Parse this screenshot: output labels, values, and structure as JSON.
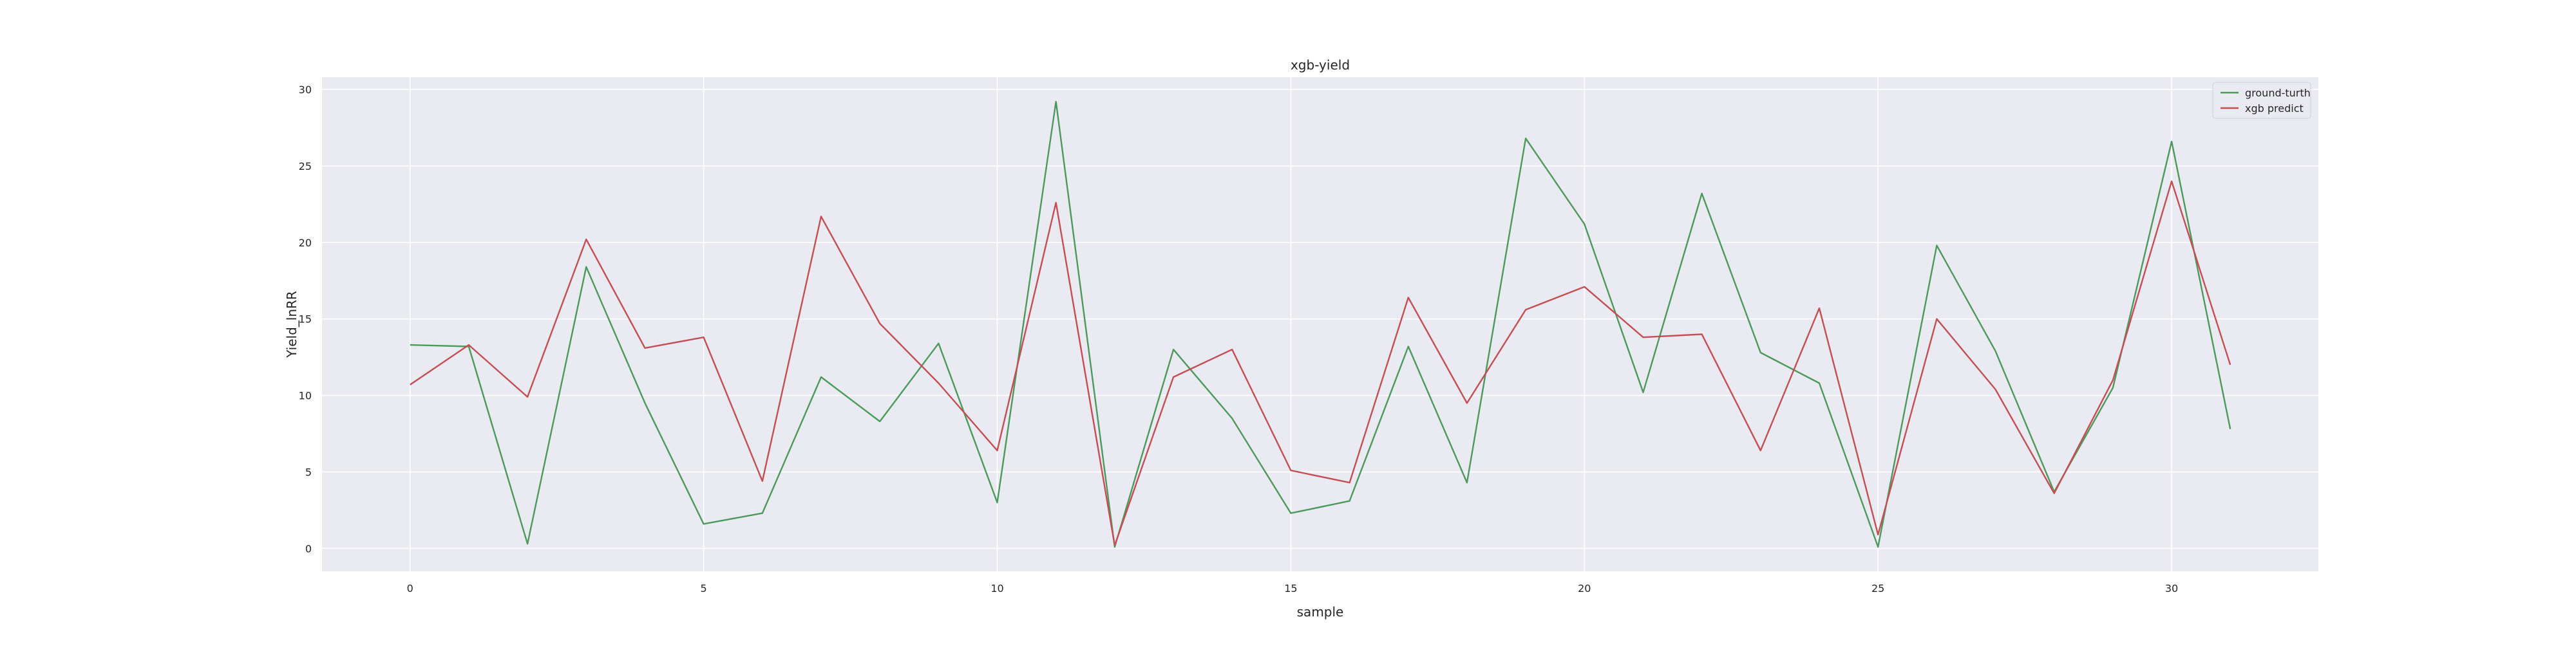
{
  "chart_data": {
    "type": "line",
    "title": "xgb-yield",
    "xlabel": "sample",
    "ylabel": "Yield_lnRR",
    "xlim": [
      -1.5,
      32.5
    ],
    "ylim": [
      -1.5,
      30.8
    ],
    "xticks": [
      0,
      5,
      10,
      15,
      20,
      25,
      30
    ],
    "yticks": [
      0,
      5,
      10,
      15,
      20,
      25,
      30
    ],
    "grid": true,
    "legend_position": "top-right",
    "x": [
      0,
      1,
      2,
      3,
      4,
      5,
      6,
      7,
      8,
      9,
      10,
      11,
      12,
      13,
      14,
      15,
      16,
      17,
      18,
      19,
      20,
      21,
      22,
      23,
      24,
      25,
      26,
      27,
      28,
      29,
      30,
      31
    ],
    "series": [
      {
        "name": "ground-turth",
        "color": "#4c9a5b",
        "values": [
          13.3,
          13.2,
          0.3,
          18.4,
          9.5,
          1.6,
          2.3,
          11.2,
          8.3,
          13.4,
          3.0,
          29.2,
          0.1,
          13.0,
          8.5,
          2.3,
          3.1,
          13.2,
          4.3,
          26.8,
          21.2,
          10.2,
          23.2,
          12.8,
          10.8,
          0.1,
          19.8,
          12.9,
          3.7,
          10.5,
          26.6,
          7.8
        ]
      },
      {
        "name": "xgb predict",
        "color": "#c44e52",
        "values": [
          10.7,
          13.3,
          9.9,
          20.2,
          13.1,
          13.8,
          4.4,
          21.7,
          14.7,
          10.8,
          6.4,
          22.6,
          0.2,
          11.2,
          13.0,
          5.1,
          4.3,
          16.4,
          9.5,
          15.6,
          17.1,
          13.8,
          14.0,
          6.4,
          15.7,
          0.9,
          15.0,
          10.4,
          3.6,
          11.0,
          24.0,
          12.0
        ]
      }
    ]
  }
}
